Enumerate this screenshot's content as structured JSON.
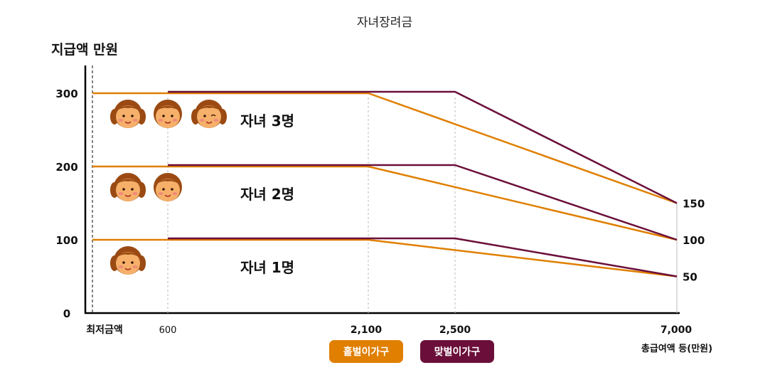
{
  "chart_data": {
    "type": "line",
    "title": "자녀장려금",
    "ylabel": "지급액 만원",
    "xlabel": "총급여액 등(만원)",
    "ylim": [
      0,
      300
    ],
    "xlim": [
      0,
      7000
    ],
    "y_ticks": [
      {
        "value": 0,
        "label": "0"
      },
      {
        "value": 100,
        "label": "100"
      },
      {
        "value": 200,
        "label": "200"
      },
      {
        "value": 300,
        "label": "300"
      }
    ],
    "x_ticks": [
      {
        "value": 0,
        "label": "최저금액"
      },
      {
        "value": 600,
        "label": "600"
      },
      {
        "value": 2100,
        "label": "2,100"
      },
      {
        "value": 2500,
        "label": "2,500"
      },
      {
        "value": 7000,
        "label": "7,000"
      }
    ],
    "right_labels": [
      {
        "value": 150,
        "label": "150"
      },
      {
        "value": 100,
        "label": "100"
      },
      {
        "value": 50,
        "label": "50"
      }
    ],
    "series": [
      {
        "group": "홑벌이가구",
        "children": "3",
        "color": "#e07f00",
        "points": [
          [
            0,
            300
          ],
          [
            2100,
            300
          ],
          [
            7000,
            150
          ]
        ]
      },
      {
        "group": "맞벌이가구",
        "children": "3",
        "color": "#6b0f3a",
        "points": [
          [
            600,
            300
          ],
          [
            2500,
            300
          ],
          [
            7000,
            150
          ]
        ]
      },
      {
        "group": "홑벌이가구",
        "children": "2",
        "color": "#e07f00",
        "points": [
          [
            0,
            200
          ],
          [
            2100,
            200
          ],
          [
            7000,
            100
          ]
        ]
      },
      {
        "group": "맞벌이가구",
        "children": "2",
        "color": "#6b0f3a",
        "points": [
          [
            600,
            200
          ],
          [
            2500,
            200
          ],
          [
            7000,
            100
          ]
        ]
      },
      {
        "group": "홑벌이가구",
        "children": "1",
        "color": "#e07f00",
        "points": [
          [
            0,
            100
          ],
          [
            2100,
            100
          ],
          [
            7000,
            50
          ]
        ]
      },
      {
        "group": "맞벌이가구",
        "children": "1",
        "color": "#6b0f3a",
        "points": [
          [
            600,
            100
          ],
          [
            2500,
            100
          ],
          [
            7000,
            50
          ]
        ]
      }
    ],
    "annotations": [
      {
        "label": "자녀 3명",
        "faces": 3,
        "y": 300
      },
      {
        "label": "자녀 2명",
        "faces": 2,
        "y": 200
      },
      {
        "label": "자녀 1명",
        "faces": 1,
        "y": 100
      }
    ],
    "grid": false,
    "legend": {
      "position": "bottom-center",
      "items": [
        {
          "label": "홑벌이가구",
          "color": "#e07f00"
        },
        {
          "label": "맞벌이가구",
          "color": "#6b0f3a"
        }
      ]
    }
  }
}
